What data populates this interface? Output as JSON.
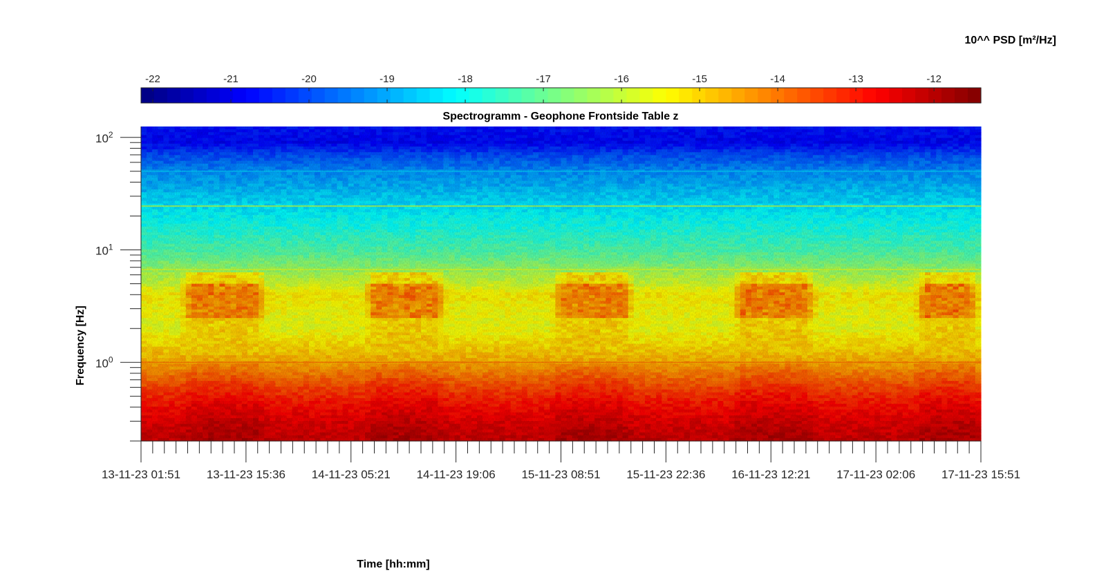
{
  "chart_data": {
    "type": "heatmap",
    "title": "Spectrogramm - Geophone Frontside Table z",
    "xlabel": "Time [hh:mm]",
    "ylabel": "Frequency [Hz]",
    "colorbar_label": "10^^ PSD [m²/Hz]",
    "colormap": "jet",
    "color_range": [
      -22.15,
      -11.4
    ],
    "colorbar_ticks": [
      -22,
      -21,
      -20,
      -19,
      -18,
      -17,
      -16,
      -15,
      -14,
      -13,
      -12
    ],
    "colorbar_tick_labels": [
      "-22",
      "-21",
      "-20",
      "-19",
      "-18",
      "-17",
      "-16",
      "-15",
      "-14",
      "-13",
      "-12"
    ],
    "y_scale": "log",
    "y_range": [
      0.2,
      125
    ],
    "y_ticks": [
      1,
      10,
      100
    ],
    "y_tick_base": "10",
    "y_tick_exponents": [
      "0",
      "1",
      "2"
    ],
    "x_range": [
      "13-11-23 01:51",
      "17-11-23 15:51"
    ],
    "x_tick_labels": [
      "13-11-23 01:51",
      "13-11-23 15:36",
      "14-11-23 05:21",
      "14-11-23 19:06",
      "15-11-23 08:51",
      "15-11-23 22:36",
      "16-11-23 12:21",
      "17-11-23 02:06",
      "17-11-23 15:51"
    ],
    "x_minor_ticks_per_major": 8,
    "freq_profile": [
      {
        "f": 0.2,
        "psd": -12.2
      },
      {
        "f": 0.3,
        "psd": -12.5
      },
      {
        "f": 0.45,
        "psd": -13.0
      },
      {
        "f": 0.6,
        "psd": -13.5
      },
      {
        "f": 0.8,
        "psd": -14.1
      },
      {
        "f": 1.0,
        "psd": -14.6
      },
      {
        "f": 1.5,
        "psd": -15.2
      },
      {
        "f": 2.0,
        "psd": -15.6
      },
      {
        "f": 3.0,
        "psd": -15.5
      },
      {
        "f": 4.0,
        "psd": -15.3
      },
      {
        "f": 5.0,
        "psd": -15.9
      },
      {
        "f": 7.0,
        "psd": -16.6
      },
      {
        "f": 10.0,
        "psd": -17.3
      },
      {
        "f": 15.0,
        "psd": -17.8
      },
      {
        "f": 20.0,
        "psd": -18.1
      },
      {
        "f": 30.0,
        "psd": -18.6
      },
      {
        "f": 50.0,
        "psd": -19.3
      },
      {
        "f": 70.0,
        "psd": -20.0
      },
      {
        "f": 90.0,
        "psd": -20.8
      },
      {
        "f": 125.0,
        "psd": -20.6
      }
    ],
    "line_features": [
      {
        "f": 24.5,
        "psd": -16.3
      },
      {
        "f": 50.0,
        "psd": -18.7
      },
      {
        "f": 6.7,
        "psd": -15.9
      },
      {
        "f": 1.0,
        "psd": -14.0
      }
    ],
    "activity_periods": [
      {
        "start": "13-11-23 07:00",
        "end": "13-11-23 18:30"
      },
      {
        "start": "14-11-23 07:00",
        "end": "14-11-23 18:00"
      },
      {
        "start": "15-11-23 07:30",
        "end": "15-11-23 18:30"
      },
      {
        "start": "16-11-23 07:00",
        "end": "16-11-23 18:30"
      },
      {
        "start": "17-11-23 07:00",
        "end": "17-11-23 15:51"
      }
    ],
    "activity_band_hz": [
      2.5,
      5.0
    ],
    "activity_peak_psd": -13.8,
    "legend": "colorbar at top"
  }
}
